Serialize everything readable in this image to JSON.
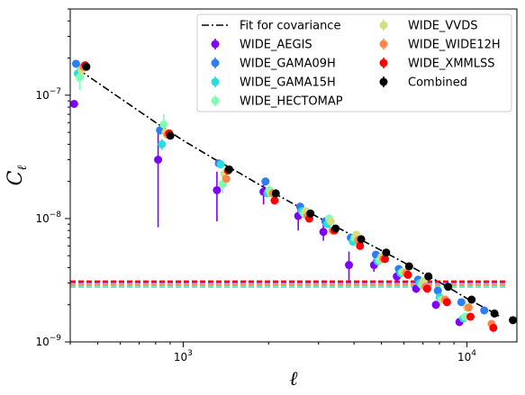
{
  "chart_data": {
    "type": "scatter",
    "xscale": "log",
    "yscale": "log",
    "xlim": [
      400,
      15000
    ],
    "ylim": [
      1e-09,
      5e-07
    ],
    "xlabel": "ℓ",
    "ylabel": "C",
    "ylabel_sub": "ℓ",
    "xticks": [
      {
        "value": 1000,
        "base": "10",
        "exp": "3"
      },
      {
        "value": 10000,
        "base": "10",
        "exp": "4"
      }
    ],
    "yticks": [
      {
        "value": 1e-09,
        "base": "10",
        "exp": "−9"
      },
      {
        "value": 1e-08,
        "base": "10",
        "exp": "−8"
      },
      {
        "value": 1e-07,
        "base": "10",
        "exp": "−7"
      }
    ],
    "legend_position": "top-right",
    "fit": {
      "name": "Fit for covariance",
      "color": "#000000",
      "x": [
        430,
        800,
        1000,
        1300,
        1600,
        2000,
        2500,
        3000,
        4000,
        5000,
        6000,
        7000,
        8000,
        9000,
        10000,
        11000,
        12000,
        13000
      ],
      "y": [
        1.6e-07,
        6e-08,
        4.3e-08,
        3e-08,
        2.3e-08,
        1.7e-08,
        1.28e-08,
        1.02e-08,
        7.2e-09,
        5.5e-09,
        4.4e-09,
        3.6e-09,
        3.05e-09,
        2.6e-09,
        2.25e-09,
        2e-09,
        1.8e-09,
        1.62e-09
      ]
    },
    "series": [
      {
        "name": "WIDE_AEGIS",
        "color": "#8000ff",
        "noise": 3e-09,
        "dx": 0.96,
        "y": [
          8.5e-08,
          3e-08,
          1.7e-08,
          1.65e-08,
          1.05e-08,
          7.8e-09,
          4.2e-09,
          4.2e-09,
          3.4e-09,
          2.7e-09,
          2e-09,
          1.45e-09
        ],
        "err": [
          [
            5e-09,
            5e-09
          ],
          [
            2.15e-08,
            2e-08
          ],
          [
            7.5e-09,
            7e-09
          ],
          [
            3.5e-09,
            3e-09
          ],
          [
            2.5e-09,
            2e-09
          ],
          [
            1.2e-09,
            1.2e-09
          ],
          [
            1.2e-09,
            1.2e-09
          ],
          [
            5e-10,
            5e-10
          ],
          [
            3e-10,
            3e-10
          ],
          [
            2e-10,
            2e-10
          ],
          [
            1.5e-10,
            1.5e-10
          ],
          [
            1e-10,
            1e-10
          ]
        ]
      },
      {
        "name": "WIDE_GAMA09H",
        "color": "#2c7ef7",
        "noise": 2.9e-09,
        "dx": 0.975,
        "y": [
          1.8e-07,
          5.2e-08,
          2.8e-08,
          2e-08,
          1.25e-08,
          9.5e-09,
          7e-09,
          5.1e-09,
          3.9e-09,
          3.2e-09,
          2.6e-09,
          2.1e-09,
          1.8e-09
        ],
        "err": [
          [
            1e-08,
            1e-08
          ],
          [
            4e-09,
            4e-09
          ],
          [
            1.5e-09,
            1.5e-09
          ],
          [
            1e-09,
            1e-09
          ],
          [
            6e-10,
            6e-10
          ],
          [
            4e-10,
            4e-10
          ],
          [
            3e-10,
            3e-10
          ],
          [
            2e-10,
            2e-10
          ],
          [
            1.5e-10,
            1.5e-10
          ],
          [
            1e-10,
            1e-10
          ],
          [
            1e-10,
            1e-10
          ],
          [
            8e-11,
            8e-11
          ],
          [
            6e-11,
            6e-11
          ]
        ]
      },
      {
        "name": "WIDE_GAMA15H",
        "color": "#2adddd",
        "noise": 2.8e-09,
        "dx": 0.99,
        "y": [
          1.5e-07,
          4e-08,
          2.75e-08,
          1.6e-08,
          1.15e-08,
          9e-09,
          6.5e-09,
          4.5e-09,
          3.6e-09,
          3e-09,
          2.3e-09,
          1.55e-09
        ],
        "err": [
          [
            2e-08,
            2e-08
          ],
          [
            4e-09,
            4e-09
          ],
          [
            2e-09,
            2e-09
          ],
          [
            1e-09,
            1e-09
          ],
          [
            7e-10,
            7e-10
          ],
          [
            5e-10,
            5e-10
          ],
          [
            3e-10,
            3e-10
          ],
          [
            2e-10,
            2e-10
          ],
          [
            1.5e-10,
            1.5e-10
          ],
          [
            1e-10,
            1e-10
          ],
          [
            1e-10,
            1e-10
          ],
          [
            6e-11,
            6e-11
          ]
        ]
      },
      {
        "name": "WIDE_HECTOMAP",
        "color": "#80ffb4",
        "noise": 2.85e-09,
        "dx": 1.005,
        "y": [
          1.4e-07,
          5.8e-08,
          1.9e-08,
          1.7e-08,
          1.1e-08,
          1e-08,
          7e-09,
          4.6e-09,
          3.7e-09,
          2.9e-09,
          2.2e-09,
          1.6e-09
        ],
        "err": [
          [
            3e-08,
            3e-08
          ],
          [
            1.2e-08,
            1.2e-08
          ],
          [
            3e-09,
            3e-09
          ],
          [
            1.5e-09,
            1.5e-09
          ],
          [
            1e-09,
            1e-09
          ],
          [
            8e-10,
            8e-10
          ],
          [
            4e-10,
            4e-10
          ],
          [
            3e-10,
            3e-10
          ],
          [
            2e-10,
            2e-10
          ],
          [
            1.5e-10,
            1.5e-10
          ],
          [
            1e-10,
            1e-10
          ],
          [
            8e-11,
            8e-11
          ]
        ]
      },
      {
        "name": "WIDE_VVDS",
        "color": "#d4dd80",
        "noise": 2.95e-09,
        "dx": 1.02,
        "y": [
          1.6e-07,
          5e-08,
          2.3e-08,
          1.6e-08,
          1.15e-08,
          9.5e-09,
          7.4e-09,
          4.9e-09,
          3.7e-09,
          3.1e-09,
          2.2e-09,
          1.9e-09
        ],
        "err": [
          [
            8e-09,
            8e-09
          ],
          [
            3e-09,
            3e-09
          ],
          [
            1.2e-09,
            1.2e-09
          ],
          [
            8e-10,
            8e-10
          ],
          [
            5e-10,
            5e-10
          ],
          [
            4e-10,
            4e-10
          ],
          [
            3e-10,
            3e-10
          ],
          [
            2e-10,
            2e-10
          ],
          [
            1.5e-10,
            1.5e-10
          ],
          [
            1e-10,
            1e-10
          ],
          [
            8e-11,
            8e-11
          ],
          [
            6e-11,
            6e-11
          ]
        ]
      },
      {
        "name": "WIDE_WIDE12H",
        "color": "#ff8548",
        "noise": 2.9e-09,
        "dx": 1.035,
        "y": [
          1.7e-07,
          4.8e-08,
          2.1e-08,
          1.6e-08,
          1.05e-08,
          8e-09,
          6.7e-09,
          4.7e-09,
          3.6e-09,
          2.8e-09,
          2.2e-09,
          1.9e-09,
          1.4e-09
        ],
        "err": [
          [
            8e-09,
            8e-09
          ],
          [
            3e-09,
            3e-09
          ],
          [
            1.2e-09,
            1.2e-09
          ],
          [
            8e-10,
            8e-10
          ],
          [
            5e-10,
            5e-10
          ],
          [
            4e-10,
            4e-10
          ],
          [
            3e-10,
            3e-10
          ],
          [
            2e-10,
            2e-10
          ],
          [
            1.5e-10,
            1.5e-10
          ],
          [
            1e-10,
            1e-10
          ],
          [
            8e-11,
            8e-11
          ],
          [
            6e-11,
            6e-11
          ],
          [
            5e-11,
            5e-11
          ]
        ]
      },
      {
        "name": "WIDE_XMMLSS",
        "color": "#ff0000",
        "noise": 3.1e-09,
        "dx": 1.05,
        "y": [
          1.75e-07,
          4.9e-08,
          2.45e-08,
          1.4e-08,
          1e-08,
          8e-09,
          6e-09,
          4.7e-09,
          3.5e-09,
          2.7e-09,
          2.1e-09,
          1.6e-09,
          1.3e-09
        ],
        "err": [
          [
            8e-09,
            8e-09
          ],
          [
            3e-09,
            3e-09
          ],
          [
            1.2e-09,
            1.2e-09
          ],
          [
            8e-10,
            8e-10
          ],
          [
            5e-10,
            5e-10
          ],
          [
            4e-10,
            4e-10
          ],
          [
            3e-10,
            3e-10
          ],
          [
            2e-10,
            2e-10
          ],
          [
            1.5e-10,
            1.5e-10
          ],
          [
            1e-10,
            1e-10
          ],
          [
            8e-11,
            8e-11
          ],
          [
            6e-11,
            6e-11
          ],
          [
            5e-11,
            5e-11
          ]
        ]
      },
      {
        "name": "Combined",
        "color": "#000000",
        "noise": null,
        "dx": 1.06,
        "y": [
          1.7e-07,
          4.7e-08,
          2.5e-08,
          1.6e-08,
          1.1e-08,
          8.3e-09,
          6.8e-09,
          5.3e-09,
          4.1e-09,
          3.4e-09,
          2.8e-09,
          2.2e-09,
          1.7e-09,
          1.5e-09
        ],
        "err": [
          [
            5e-09,
            5e-09
          ],
          [
            2e-09,
            2e-09
          ],
          [
            8e-10,
            8e-10
          ],
          [
            5e-10,
            5e-10
          ],
          [
            3e-10,
            3e-10
          ],
          [
            2e-10,
            2e-10
          ],
          [
            1.5e-10,
            1.5e-10
          ],
          [
            1e-10,
            1e-10
          ],
          [
            8e-11,
            8e-11
          ],
          [
            6e-11,
            6e-11
          ],
          [
            5e-11,
            5e-11
          ],
          [
            4e-11,
            4e-11
          ],
          [
            3e-11,
            3e-11
          ],
          [
            3e-11,
            3e-11
          ]
        ]
      }
    ],
    "bins": [
      430,
      850,
      1370,
      2000,
      2650,
      3250,
      4000,
      4900,
      5900,
      6900,
      8100,
      9800,
      11800,
      13700
    ]
  }
}
